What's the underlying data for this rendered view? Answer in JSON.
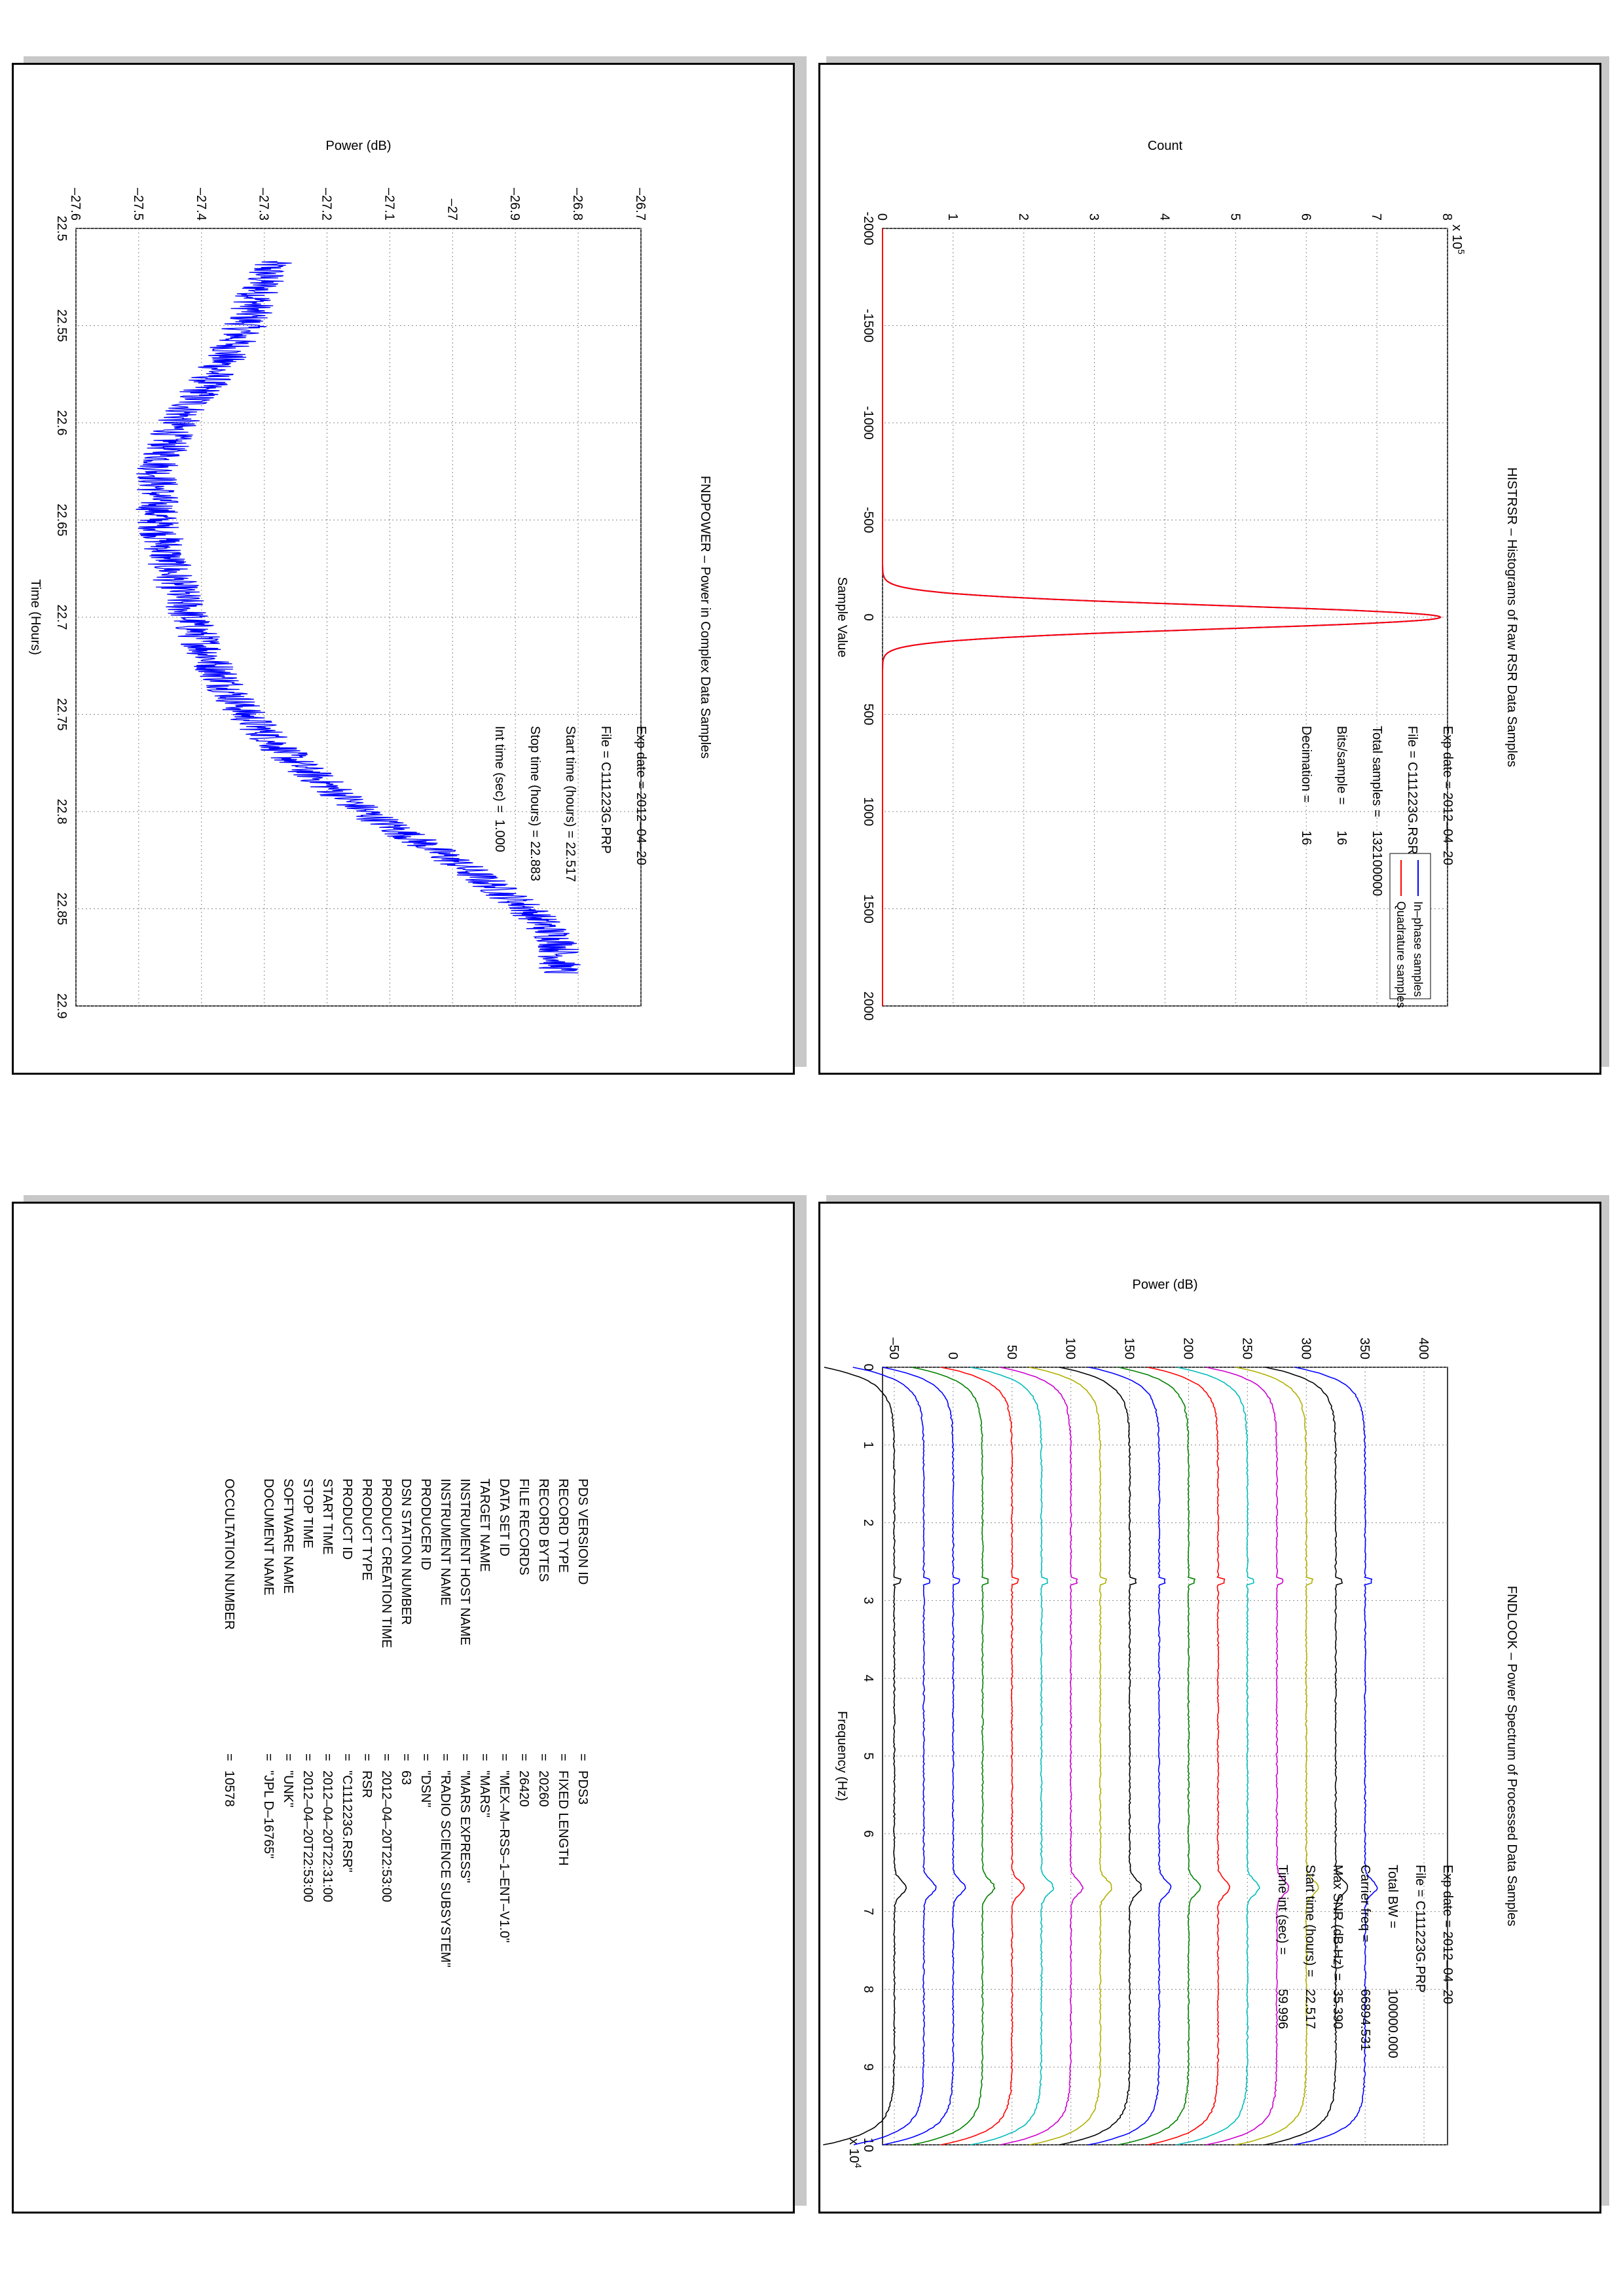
{
  "histogram": {
    "title": "HISTRSR – Histograms of Raw RSR Data Samples",
    "xlabel": "Sample Value",
    "ylabel": "Count",
    "y_exponent": "x 10",
    "y_exponent_power": "5",
    "legend": [
      "In–phase samples",
      "Quadrature samples"
    ],
    "info": [
      {
        "label": "Exp date = 2012–04–20",
        "value": ""
      },
      {
        "label": "File = C111223G.RSR",
        "value": ""
      },
      {
        "label": "Total samples = ",
        "value": "132100000"
      },
      {
        "label": "Bits/sample   =",
        "value": "16"
      },
      {
        "label": "Decimation    =",
        "value": "16"
      }
    ],
    "colors": {
      "inphase": "#0000ff",
      "quadrature": "#ff0000"
    }
  },
  "power": {
    "title": "FNDPOWER – Power in Complex Data Samples",
    "xlabel": "Time (Hours)",
    "ylabel": "Power (dB)",
    "info": [
      {
        "label": "Exp date = 2012–04–20",
        "value": ""
      },
      {
        "label": "File = C111223G.PRP",
        "value": ""
      },
      {
        "label": "Start time (hours) = 22.517",
        "value": ""
      },
      {
        "label": "Stop time (hours) = 22.883",
        "value": ""
      },
      {
        "label": "Int time (sec) =",
        "value": "1.000"
      }
    ],
    "color": "#0000ff"
  },
  "spectrum": {
    "title": "FNDLOOK – Power Spectrum of Processed Data Samples",
    "xlabel": "Frequency (Hz)",
    "ylabel": "Power (dB)",
    "x_exponent": "x 10",
    "x_exponent_power": "4",
    "info": [
      {
        "label": "Exp date = 2012–04–20",
        "value": ""
      },
      {
        "label": "File = C111223G.PRP",
        "value": ""
      },
      {
        "label": "Total BW =",
        "value": "100000.000"
      },
      {
        "label": "Carrier freq =",
        "value": "66894.531"
      },
      {
        "label": "Max SNR (dB-Hz) =",
        "value": "35.390"
      },
      {
        "label": "Start time (hours) =",
        "value": "22.517"
      },
      {
        "label": "Time int (sec) =",
        "value": "59.996"
      }
    ],
    "colors": [
      "#0000ff",
      "#000000",
      "#b0b000",
      "#cc00cc",
      "#00bbbb",
      "#ff0000",
      "#008000",
      "#0000ff",
      "#000000",
      "#b0b000",
      "#cc00cc",
      "#00bbbb",
      "#ff0000",
      "#008000",
      "#0000ff"
    ]
  },
  "pds": {
    "rows": [
      {
        "key": "PDS VERSION ID",
        "val": "PDS3"
      },
      {
        "key": "RECORD TYPE",
        "val": "FIXED LENGTH"
      },
      {
        "key": "RECORD BYTES",
        "val": "20260"
      },
      {
        "key": "FILE RECORDS",
        "val": "26420"
      },
      {
        "key": "DATA SET ID",
        "val": "\"MEX–M–RSS–1–ENT–V1.0\""
      },
      {
        "key": "TARGET NAME",
        "val": "\"MARS\""
      },
      {
        "key": "INSTRUMENT HOST NAME",
        "val": "\"MARS EXPRESS\""
      },
      {
        "key": "INSTRUMENT NAME",
        "val": "\"RADIO SCIENCE SUBSYSTEM\""
      },
      {
        "key": "PRODUCER ID",
        "val": "\"DSN\""
      },
      {
        "key": "DSN STATION NUMBER",
        "val": "63"
      },
      {
        "key": "PRODUCT CREATION TIME",
        "val": "2012–04–20T22:53:00"
      },
      {
        "key": "PRODUCT TYPE",
        "val": "RSR"
      },
      {
        "key": "PRODUCT ID",
        "val": "\"C111223G.RSR\""
      },
      {
        "key": "START TIME",
        "val": "2012–04–20T22:31:00"
      },
      {
        "key": "STOP TIME",
        "val": "2012–04–20T22:53:00"
      },
      {
        "key": "SOFTWARE NAME",
        "val": "\"UNK\""
      },
      {
        "key": "DOCUMENT NAME",
        "val": "\"JPL D–16765\""
      },
      {
        "key": "",
        "val": ""
      },
      {
        "key": "OCCULTATION NUMBER",
        "val": "10578"
      }
    ],
    "eq": "="
  },
  "chart_data": [
    {
      "type": "line",
      "title": "HISTRSR – Histograms of Raw RSR Data Samples",
      "xlabel": "Sample Value",
      "ylabel": "Count",
      "xlim": [
        -2000,
        2000
      ],
      "ylim": [
        0,
        800000
      ],
      "xticks": [
        -2000,
        -1500,
        -1000,
        -500,
        0,
        500,
        1000,
        1500,
        2000
      ],
      "yticks": [
        0,
        1,
        2,
        3,
        4,
        5,
        6,
        7,
        8
      ],
      "series": [
        {
          "name": "In–phase samples",
          "peak_x": 0,
          "peak": 790000,
          "sigma": 60
        },
        {
          "name": "Quadrature samples",
          "peak_x": 0,
          "peak": 790000,
          "sigma": 60
        }
      ],
      "grid": true,
      "legend": "top-right"
    },
    {
      "type": "line",
      "title": "FNDPOWER – Power in Complex Data Samples",
      "xlabel": "Time (Hours)",
      "ylabel": "Power (dB)",
      "xlim": [
        22.5,
        22.9
      ],
      "ylim": [
        -27.6,
        -26.7
      ],
      "xticks": [
        22.5,
        22.55,
        22.6,
        22.65,
        22.7,
        22.75,
        22.8,
        22.85,
        22.9
      ],
      "yticks": [
        -27.6,
        -27.5,
        -27.4,
        -27.3,
        -27.2,
        -27.1,
        -27,
        -26.9,
        -26.8,
        -26.7
      ],
      "series": [
        {
          "name": "",
          "x": [
            22.517,
            22.55,
            22.575,
            22.6,
            22.625,
            22.65,
            22.675,
            22.7,
            22.725,
            22.75,
            22.775,
            22.8,
            22.825,
            22.85,
            22.867,
            22.883
          ],
          "y": [
            -27.29,
            -27.33,
            -27.38,
            -27.44,
            -27.47,
            -27.47,
            -27.45,
            -27.42,
            -27.38,
            -27.33,
            -27.25,
            -27.14,
            -27.0,
            -26.88,
            -26.83,
            -26.83
          ]
        }
      ],
      "grid": true
    },
    {
      "type": "line",
      "title": "FNDLOOK – Power Spectrum of Processed Data Samples",
      "xlabel": "Frequency (Hz)",
      "ylabel": "Power (dB)",
      "xlim": [
        0,
        100000
      ],
      "ylim": [
        -60,
        420
      ],
      "xticks": [
        0,
        1,
        2,
        3,
        4,
        5,
        6,
        7,
        8,
        9,
        10
      ],
      "yticks": [
        -50,
        0,
        50,
        100,
        150,
        200,
        250,
        300,
        350,
        400
      ],
      "series": [
        {
          "name": "",
          "base_level": 350
        },
        {
          "name": "",
          "base_level": 325
        },
        {
          "name": "",
          "base_level": 300
        },
        {
          "name": "",
          "base_level": 275
        },
        {
          "name": "",
          "base_level": 250
        },
        {
          "name": "",
          "base_level": 225
        },
        {
          "name": "",
          "base_level": 200
        },
        {
          "name": "",
          "base_level": 175
        },
        {
          "name": "",
          "base_level": 150
        },
        {
          "name": "",
          "base_level": 125
        },
        {
          "name": "",
          "base_level": 100
        },
        {
          "name": "",
          "base_level": 75
        },
        {
          "name": "",
          "base_level": 50
        },
        {
          "name": "",
          "base_level": 25
        },
        {
          "name": "",
          "base_level": 0
        },
        {
          "name": "",
          "base_level": -25
        },
        {
          "name": "",
          "base_level": -50
        }
      ],
      "carrier_x": 66894.531,
      "grid": true
    }
  ]
}
